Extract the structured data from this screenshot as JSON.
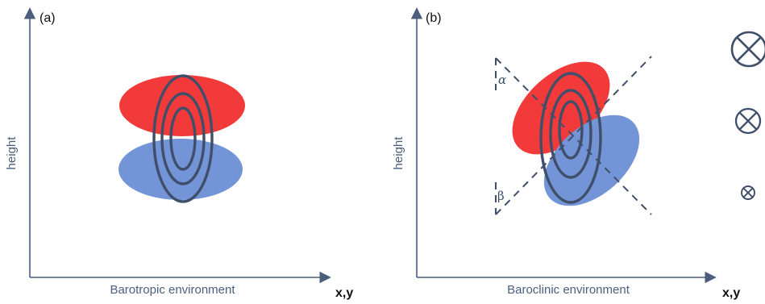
{
  "panels": {
    "a": {
      "label": "(a)",
      "xlabel": "Barotropic environment",
      "ylabel": "height",
      "axis_arrow_label": "x,y"
    },
    "b": {
      "label": "(b)",
      "xlabel": "Baroclinic environment",
      "ylabel": "height",
      "axis_arrow_label": "x,y",
      "angle_top": "α",
      "angle_bottom": "β"
    }
  },
  "colors": {
    "axis": "#4a5f7e",
    "warm_anomaly": "#f23a3a",
    "cold_anomaly": "#7494d8",
    "contour": "#3f4f6a"
  },
  "icons": [
    "cross-circle-large-icon",
    "cross-circle-medium-icon",
    "cross-circle-small-icon"
  ]
}
